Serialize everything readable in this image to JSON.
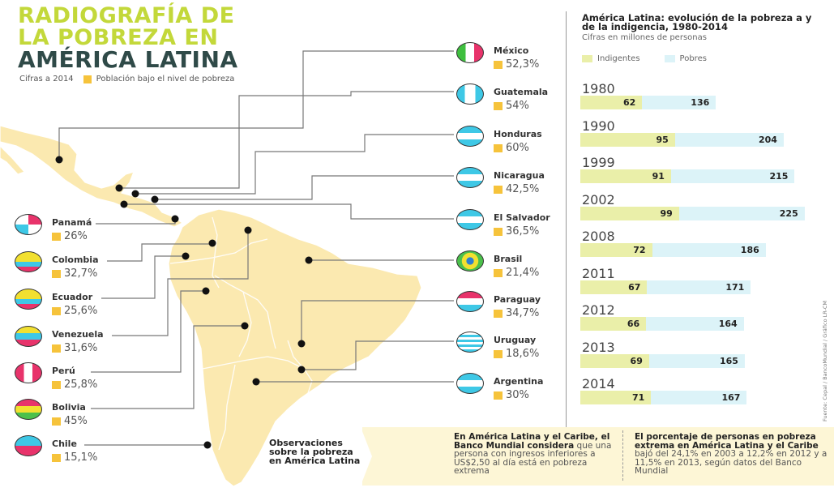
{
  "title": {
    "line1": "RADIOGRAFÍA DE",
    "line2": "LA POBREZA EN",
    "line3": "AMÉRICA LATINA"
  },
  "subtitle": {
    "year_note": "Cifras a 2014",
    "legend_label": "Población bajo el nivel de pobreza"
  },
  "countries": [
    {
      "name": "México",
      "value": "52,3%"
    },
    {
      "name": "Guatemala",
      "value": "54%"
    },
    {
      "name": "Honduras",
      "value": "60%"
    },
    {
      "name": "Nicaragua",
      "value": "42,5%"
    },
    {
      "name": "El Salvador",
      "value": "36,5%"
    },
    {
      "name": "Brasil",
      "value": "21,4%"
    },
    {
      "name": "Paraguay",
      "value": "34,7%"
    },
    {
      "name": "Uruguay",
      "value": "18,6%"
    },
    {
      "name": "Argentina",
      "value": "30%"
    },
    {
      "name": "Panamá",
      "value": "26%"
    },
    {
      "name": "Colombia",
      "value": "32,7%"
    },
    {
      "name": "Ecuador",
      "value": "25,6%"
    },
    {
      "name": "Venezuela",
      "value": "31,6%"
    },
    {
      "name": "Perú",
      "value": "25,8%"
    },
    {
      "name": "Bolivia",
      "value": "45%"
    },
    {
      "name": "Chile",
      "value": "15,1%"
    }
  ],
  "chart_data": {
    "type": "bar",
    "orientation": "horizontal",
    "title": "América Latina: evolución de la pobreza a y de la indigencia, 1980-2014",
    "subtitle": "Cifras en millones de personas",
    "categories": [
      "1980",
      "1990",
      "1999",
      "2002",
      "2008",
      "2011",
      "2012",
      "2013",
      "2014"
    ],
    "series": [
      {
        "name": "Indigentes",
        "color": "#eaefa9",
        "values": [
          62,
          95,
          91,
          99,
          72,
          67,
          66,
          69,
          71
        ]
      },
      {
        "name": "Pobres",
        "color": "#dcf3f8",
        "values": [
          136,
          204,
          215,
          225,
          186,
          171,
          164,
          165,
          167
        ]
      }
    ],
    "legend": "top-left",
    "source": "Fuente: Cepal / BancoMundial / Gráfico LR-CM"
  },
  "observations": {
    "title": "Observaciones sobre la pobreza en América Latina",
    "note1_bold": "En América Latina y el Caribe, el Banco Mundial considera",
    "note1_rest": "que una persona con ingresos inferiores a US$2,50 al día está en pobreza extrema",
    "note2_bold": "El porcentaje de personas en pobreza extrema en América Latina y el Caribe",
    "note2_rest": "bajó del 24,1% en 2003 a 12,2% en 2012 y a 11,5% en 2013, según datos del Banco Mundial"
  },
  "colors": {
    "title_green": "#c3d83a",
    "title_dark": "#2f4a48",
    "poverty_square": "#f6c33b",
    "map_fill": "#fbe9b0",
    "obs_band": "#fdf6d6"
  }
}
